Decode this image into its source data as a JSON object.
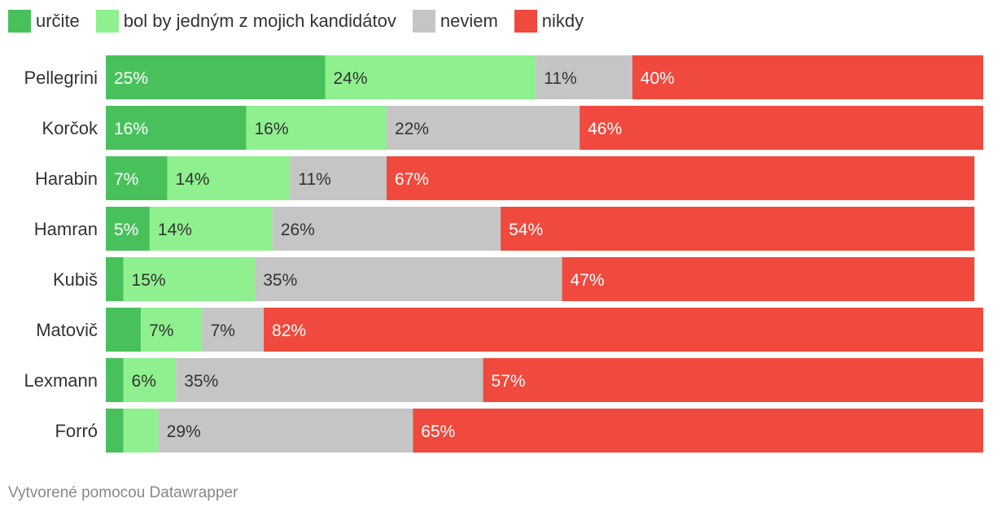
{
  "legend": [
    {
      "label": "určite",
      "color": "#48c15c"
    },
    {
      "label": "bol by jedným z mojich kandidátov",
      "color": "#8ff08f"
    },
    {
      "label": "neviem",
      "color": "#c5c5c5"
    },
    {
      "label": "nikdy",
      "color": "#ef4a3d"
    }
  ],
  "chart_data": {
    "type": "bar",
    "orientation": "horizontal",
    "stacked": true,
    "title": "",
    "xlabel": "",
    "ylabel": "",
    "categories": [
      "Pellegrini",
      "Korčok",
      "Harabin",
      "Hamran",
      "Kubiš",
      "Matovič",
      "Lexmann",
      "Forró"
    ],
    "series": [
      {
        "name": "určite",
        "color": "#48c15c",
        "values": [
          25,
          16,
          7,
          5,
          2,
          4,
          2,
          2
        ],
        "labels": [
          "25%",
          "16%",
          "7%",
          "5%",
          "",
          "",
          "",
          ""
        ]
      },
      {
        "name": "bol by jedným z mojich kandidátov",
        "color": "#8ff08f",
        "values": [
          24,
          16,
          14,
          14,
          15,
          7,
          6,
          4
        ],
        "labels": [
          "24%",
          "16%",
          "14%",
          "14%",
          "15%",
          "7%",
          "6%",
          ""
        ]
      },
      {
        "name": "neviem",
        "color": "#c5c5c5",
        "values": [
          11,
          22,
          11,
          26,
          35,
          7,
          35,
          29
        ],
        "labels": [
          "11%",
          "22%",
          "11%",
          "26%",
          "35%",
          "7%",
          "35%",
          "29%"
        ]
      },
      {
        "name": "nikdy",
        "color": "#ef4a3d",
        "values": [
          40,
          46,
          67,
          54,
          47,
          82,
          57,
          65
        ],
        "labels": [
          "40%",
          "46%",
          "67%",
          "54%",
          "47%",
          "82%",
          "57%",
          "65%"
        ]
      }
    ],
    "xlim": [
      0,
      100
    ]
  },
  "footer": {
    "credit": "Vytvorené pomocou Datawrapper"
  }
}
